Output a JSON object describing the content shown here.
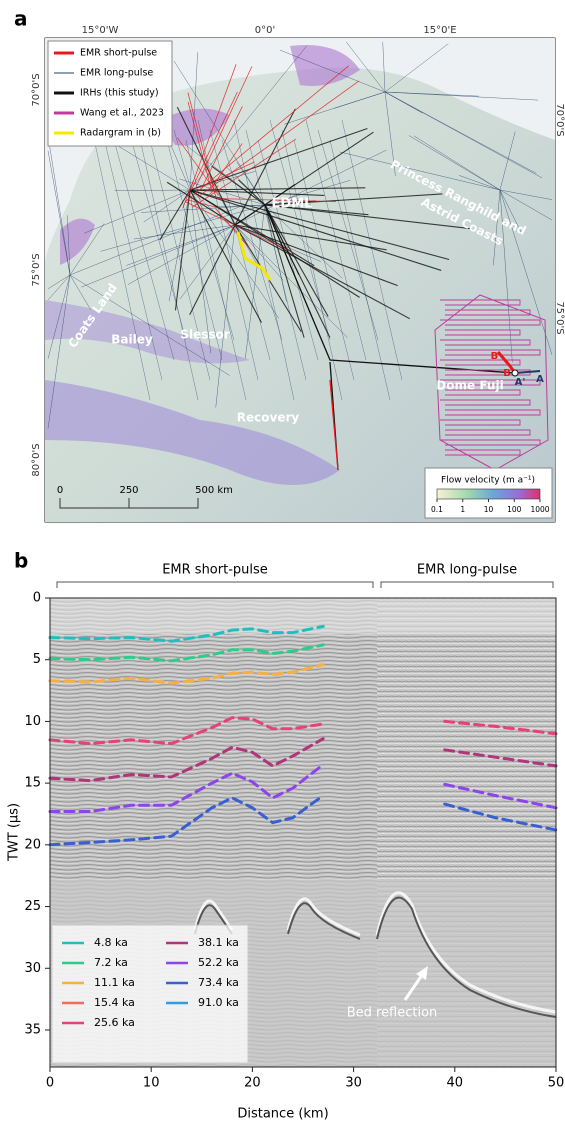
{
  "panel_labels": [
    "a",
    "b"
  ],
  "map": {
    "longitude_labels": [
      "15°0'W",
      "0°0'",
      "15°0'E"
    ],
    "latitude_labels_left": [
      "70°0'S",
      "75°0'S",
      "80°0'S"
    ],
    "latitude_labels_right": [
      "70°0'S",
      "75°0'S"
    ],
    "legend": [
      {
        "label": "EMR short-pulse",
        "color": "#e41a1c"
      },
      {
        "label": "EMR long-pulse",
        "color": "#1f3b66"
      },
      {
        "label": "IRHs (this study)",
        "color": "#111111"
      },
      {
        "label": "Wang et al., 2023",
        "color": "#c0399b"
      },
      {
        "label": "Radargram in (b)",
        "color": "#f5e700"
      }
    ],
    "regions": [
      "EDML",
      "Princess Ranghild and",
      "Astrid Coasts",
      "Coats Land",
      "Bailey",
      "Slessor",
      "Recovery",
      "Dome Fuji"
    ],
    "profile_labels": [
      "B'",
      "B",
      "A'",
      "A"
    ],
    "scale_bar": [
      "0",
      "250",
      "500 km"
    ],
    "colorbar": {
      "title": "Flow velocity (m a⁻¹)",
      "ticks": [
        0.1,
        1,
        10,
        100,
        1000
      ]
    }
  },
  "chart_data": {
    "type": "line",
    "xlabel": "Distance (km)",
    "ylabel": "TWT (µs)",
    "section_labels": [
      "EMR short-pulse",
      "EMR long-pulse"
    ],
    "annotation": "Bed reflection",
    "xlim": [
      0,
      50
    ],
    "xticks": [
      0,
      10,
      20,
      30,
      40,
      50
    ],
    "ylim": [
      38,
      0
    ],
    "yticks": [
      0,
      5,
      10,
      15,
      20,
      25,
      30,
      35
    ],
    "x": [
      0,
      4,
      8,
      12,
      16,
      18,
      20,
      22,
      24,
      27,
      33,
      39,
      44,
      50
    ],
    "series": [
      {
        "name": "4.8 ka",
        "color": "#1fbfbf",
        "values": [
          3.2,
          3.3,
          3.2,
          3.5,
          3.0,
          2.6,
          2.5,
          2.8,
          2.8,
          2.3,
          null,
          null,
          null,
          null
        ]
      },
      {
        "name": "7.2 ka",
        "color": "#2ecc8a",
        "values": [
          4.9,
          5.0,
          4.8,
          5.1,
          4.6,
          4.2,
          4.2,
          4.5,
          4.3,
          3.8,
          null,
          null,
          null,
          null
        ]
      },
      {
        "name": "11.1 ka",
        "color": "#f5b041",
        "values": [
          6.7,
          6.8,
          6.5,
          6.9,
          6.5,
          6.1,
          6.0,
          6.2,
          6.0,
          5.4,
          null,
          null,
          null,
          null
        ]
      },
      {
        "name": "15.4 ka",
        "color": "#f36b5b",
        "values": [
          null,
          null,
          null,
          null,
          null,
          null,
          null,
          null,
          null,
          null,
          null,
          null,
          null,
          null
        ]
      },
      {
        "name": "25.6 ka",
        "color": "#e8417a",
        "values": [
          11.5,
          11.8,
          11.5,
          11.8,
          10.5,
          9.7,
          9.8,
          10.6,
          10.6,
          10.2,
          null,
          10.0,
          10.4,
          11.0
        ]
      },
      {
        "name": "38.1 ka",
        "color": "#b0357a",
        "values": [
          14.6,
          14.8,
          14.3,
          14.5,
          13.0,
          12.1,
          12.5,
          13.6,
          12.8,
          11.4,
          null,
          12.3,
          12.9,
          13.6
        ]
      },
      {
        "name": "52.2 ka",
        "color": "#8e44ec",
        "values": [
          17.3,
          17.3,
          16.8,
          16.8,
          15.0,
          14.2,
          14.9,
          16.2,
          15.4,
          13.5,
          null,
          15.1,
          16.0,
          17.0
        ]
      },
      {
        "name": "73.4 ka",
        "color": "#3a5fd0",
        "values": [
          20.0,
          19.8,
          19.6,
          19.3,
          17.0,
          16.2,
          17.0,
          18.2,
          17.8,
          16.0,
          null,
          16.7,
          17.8,
          18.8
        ]
      },
      {
        "name": "91.0 ka",
        "color": "#2b9fe0",
        "values": [
          null,
          null,
          null,
          null,
          null,
          null,
          null,
          null,
          null,
          null,
          null,
          null,
          null,
          null
        ]
      }
    ]
  }
}
